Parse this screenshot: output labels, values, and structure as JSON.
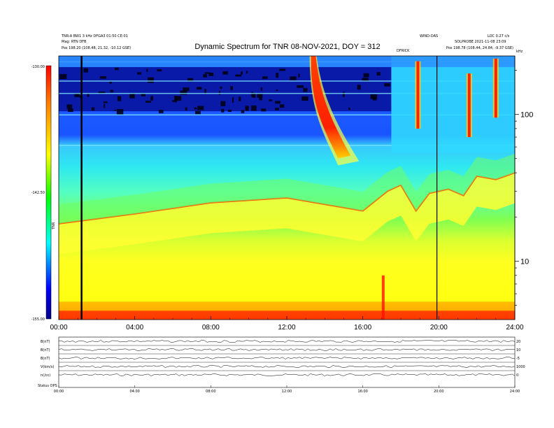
{
  "chart_data": {
    "type": "heatmap",
    "title": "Dynamic Spectrum for TNR 08-NOV-2021, DOY = 312",
    "x": {
      "ticks": [
        "00:00",
        "04:00",
        "08:00",
        "12:00",
        "16:00",
        "20:00",
        "24:00"
      ],
      "range_hours": [
        0,
        24
      ]
    },
    "y": {
      "scale": "log",
      "range_khz": [
        4,
        250
      ],
      "ticks": [
        {
          "value": 10,
          "label": "10"
        },
        {
          "value": 100,
          "label": "100"
        }
      ]
    },
    "colorbar": {
      "ticks": [
        "-130.00",
        "-142.50",
        "-155.00"
      ],
      "label": "TNR"
    },
    "features": {
      "background_band_khz": 7,
      "dark_band_low_khz": 105,
      "dark_band_high_khz": 210,
      "main_burst": {
        "start_hour": 13.2,
        "end_hour": 15.8,
        "start_khz": 250,
        "end_khz": 48
      },
      "black_lines_hour": [
        1.2,
        19.9
      ],
      "short_bursts": [
        {
          "hour": 18.9,
          "khz_top": 230,
          "khz_bottom": 80
        },
        {
          "hour": 21.6,
          "khz_top": 190,
          "khz_bottom": 70
        },
        {
          "hour": 23.0,
          "khz_top": 240,
          "khz_bottom": 95
        }
      ],
      "plasma_line": [
        {
          "hour": 0.0,
          "khz": 18
        },
        {
          "hour": 4.0,
          "khz": 21
        },
        {
          "hour": 8.0,
          "khz": 25
        },
        {
          "hour": 12.0,
          "khz": 27
        },
        {
          "hour": 16.0,
          "khz": 22
        },
        {
          "hour": 17.3,
          "khz": 30
        },
        {
          "hour": 18.0,
          "khz": 33
        },
        {
          "hour": 18.8,
          "khz": 22
        },
        {
          "hour": 19.5,
          "khz": 29
        },
        {
          "hour": 20.5,
          "khz": 31
        },
        {
          "hour": 21.3,
          "khz": 28
        },
        {
          "hour": 22.0,
          "khz": 38
        },
        {
          "hour": 23.0,
          "khz": 36
        },
        {
          "hour": 24.0,
          "khz": 40
        }
      ]
    }
  },
  "header": {
    "left_line1": "TNR-A  BW1 3 kHz  DFGA3 01:50 CE:01",
    "left_line2": "Mag: RTN  DFB",
    "left_line3": "Pos   198.20 (108.48, 21.32, -10.12 GSE)",
    "center_small": "WIND-DAS",
    "right_line1": "LOC 0.27 c/s",
    "right_line2": "SOLPROBE 2021-11-08 23:09",
    "right_line3": "Pos   198.78 (108.44, 24.84, -9.37 GSE)",
    "mid_label": "DFRICK",
    "axis_unit": "kHz"
  },
  "bottom_panels": {
    "rows": [
      {
        "label": "B(nT)",
        "right": "20"
      },
      {
        "label": "B(nT)",
        "right": "10"
      },
      {
        "label": "B(nT)",
        "right": "-5"
      },
      {
        "label": "V(km/s)",
        "right": "1000"
      },
      {
        "label": "n(/cc)",
        "right": "0"
      }
    ],
    "ticks": [
      "00:00",
      "04:00",
      "08:00",
      "12:00",
      "16:00",
      "20:00",
      "24:00"
    ],
    "footer": "Status   OPS"
  }
}
